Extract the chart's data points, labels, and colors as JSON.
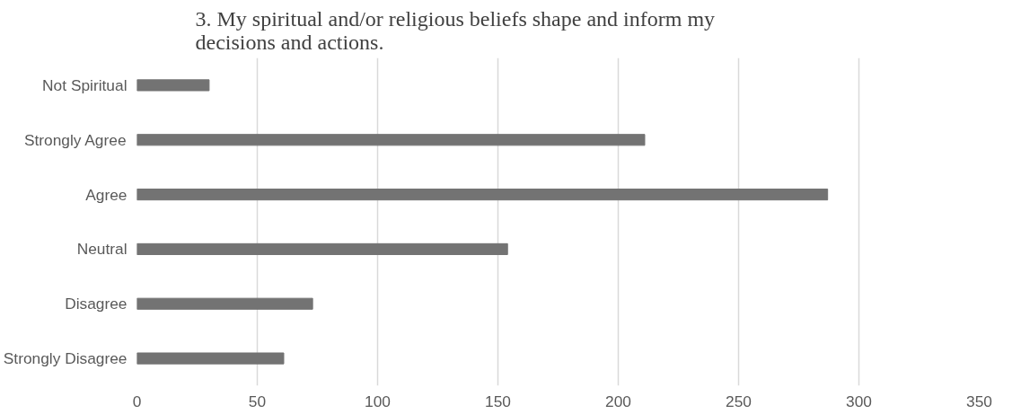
{
  "chart_data": {
    "type": "bar",
    "orientation": "horizontal",
    "title": "3. My spiritual and/or religious beliefs shape and inform my decisions and actions.",
    "categories": [
      "Not Spiritual",
      "Strongly Agree",
      "Agree",
      "Neutral",
      "Disagree",
      "Strongly Disagree"
    ],
    "values": [
      30,
      211,
      287,
      154,
      73,
      61
    ],
    "color": "#737373",
    "xlim": [
      0,
      350
    ],
    "xticks": [
      0,
      50,
      100,
      150,
      200,
      250,
      300,
      350
    ],
    "grid": "x"
  }
}
